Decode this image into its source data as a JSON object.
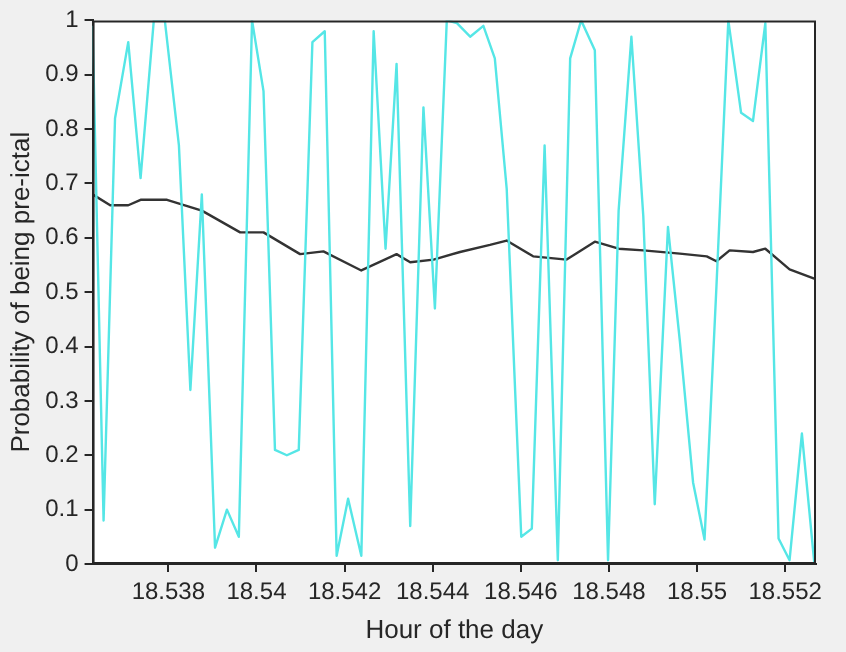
{
  "chart_data": {
    "type": "line",
    "xlabel": "Hour of the day",
    "ylabel": "Probability of being pre-ictal",
    "xlim": [
      18.53628,
      18.5527
    ],
    "xticks": [
      18.538,
      18.54,
      18.542,
      18.544,
      18.546,
      18.548,
      18.55,
      18.552
    ],
    "ylim": [
      0,
      1
    ],
    "yticks": [
      0,
      0.1,
      0.2,
      0.3,
      0.4,
      0.5,
      0.6,
      0.7,
      0.8,
      0.9,
      1
    ],
    "grid": false,
    "legend": false,
    "marker": "none",
    "line_style": "solid",
    "series": [
      {
        "color": "#55e6e6",
        "x": [
          18.53628,
          18.53653,
          18.53679,
          18.53709,
          18.53737,
          18.53767,
          18.53792,
          18.53824,
          18.5385,
          18.53876,
          18.53906,
          18.53933,
          18.5396,
          18.5399,
          18.54016,
          18.54042,
          18.54069,
          18.54096,
          18.54127,
          18.54155,
          18.54182,
          18.54208,
          18.54238,
          18.54266,
          18.54293,
          18.54318,
          18.54349,
          18.54379,
          18.54405,
          18.54432,
          18.54455,
          18.54485,
          18.54515,
          18.54541,
          18.54568,
          18.54601,
          18.54625,
          18.54654,
          18.54684,
          18.54712,
          18.54737,
          18.54768,
          18.54798,
          18.54822,
          18.54851,
          18.54878,
          18.54904,
          18.54934,
          18.54961,
          18.54991,
          18.55017,
          18.55044,
          18.55071,
          18.551,
          18.55127,
          18.55155,
          18.55185,
          18.5521,
          18.55238,
          18.55266
        ],
        "values": [
          0.99,
          0.08,
          0.82,
          0.96,
          0.71,
          1.0,
          1.0,
          0.77,
          0.32,
          0.68,
          0.03,
          0.1,
          0.05,
          1.0,
          0.87,
          0.21,
          0.2,
          0.21,
          0.96,
          0.98,
          0.015,
          0.12,
          0.015,
          0.98,
          0.58,
          0.92,
          0.07,
          0.84,
          0.47,
          1.0,
          0.995,
          0.97,
          0.99,
          0.93,
          0.69,
          0.05,
          0.065,
          0.77,
          0.007,
          0.93,
          1.0,
          0.945,
          0.007,
          0.65,
          0.97,
          0.64,
          0.11,
          0.62,
          0.41,
          0.15,
          0.045,
          0.51,
          1.0,
          0.83,
          0.815,
          0.995,
          0.047,
          0.007,
          0.24,
          0.003
        ]
      },
      {
        "color": "#333333",
        "x": [
          18.53628,
          18.53668,
          18.53709,
          18.53737,
          18.53797,
          18.53876,
          18.53963,
          18.54016,
          18.54099,
          18.54152,
          18.54238,
          18.54318,
          18.54349,
          18.54402,
          18.54462,
          18.5453,
          18.54568,
          18.54628,
          18.54704,
          18.54768,
          18.54822,
          18.54878,
          18.54961,
          18.55022,
          18.55044,
          18.55074,
          18.55127,
          18.55155,
          18.5521,
          18.55266
        ],
        "values": [
          0.68,
          0.66,
          0.66,
          0.67,
          0.67,
          0.65,
          0.61,
          0.61,
          0.57,
          0.575,
          0.54,
          0.57,
          0.555,
          0.56,
          0.574,
          0.587,
          0.595,
          0.566,
          0.56,
          0.593,
          0.58,
          0.577,
          0.571,
          0.566,
          0.557,
          0.577,
          0.574,
          0.58,
          0.542,
          0.525
        ]
      }
    ]
  }
}
